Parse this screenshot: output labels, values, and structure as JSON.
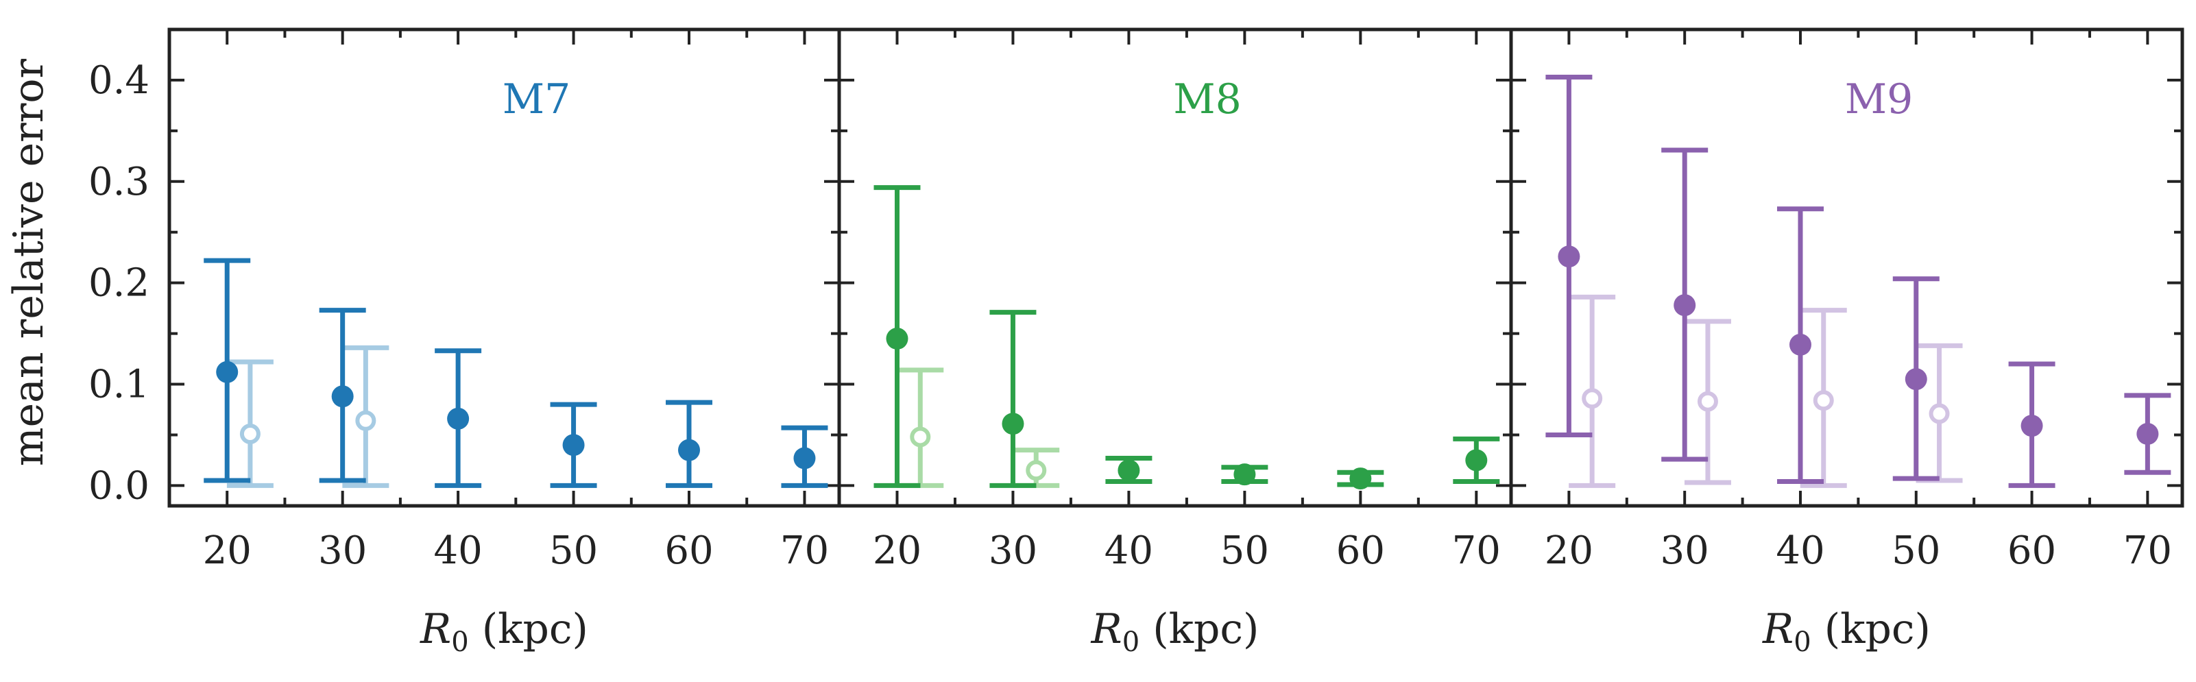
{
  "chart_data": {
    "type": "errorbar",
    "ylabel": "mean relative error",
    "ylim": [
      -0.02,
      0.45
    ],
    "yticks": [
      0.0,
      0.1,
      0.2,
      0.3,
      0.4
    ],
    "ytick_labels": [
      "0.0",
      "0.1",
      "0.2",
      "0.3",
      "0.4"
    ],
    "xlim": [
      15,
      73
    ],
    "xticks": [
      20,
      30,
      40,
      50,
      60,
      70
    ],
    "xtick_labels": [
      "20",
      "30",
      "40",
      "50",
      "60",
      "70"
    ],
    "xlabel_symbol": "R",
    "xlabel_subscript": "0",
    "xlabel_unit": " (kpc)",
    "panels": [
      {
        "label": "M7",
        "color": "#1f77b4",
        "light_color": "#a6cbe3",
        "series": [
          {
            "name": "filled",
            "x": [
              20,
              30,
              40,
              50,
              60,
              70
            ],
            "y": [
              0.112,
              0.088,
              0.066,
              0.04,
              0.035,
              0.027
            ],
            "lower": [
              0.005,
              0.005,
              0.0,
              0.0,
              0.0,
              0.0
            ],
            "upper": [
              0.222,
              0.173,
              0.133,
              0.08,
              0.082,
              0.057
            ]
          },
          {
            "name": "open",
            "x": [
              22,
              32
            ],
            "y": [
              0.051,
              0.064
            ],
            "lower": [
              0.0,
              0.0
            ],
            "upper": [
              0.122,
              0.136
            ]
          }
        ]
      },
      {
        "label": "M8",
        "color": "#2ca048",
        "light_color": "#a9dba6",
        "series": [
          {
            "name": "filled",
            "x": [
              20,
              30,
              40,
              50,
              60,
              70
            ],
            "y": [
              0.145,
              0.061,
              0.015,
              0.011,
              0.007,
              0.025
            ],
            "lower": [
              0.0,
              0.0,
              0.004,
              0.004,
              0.001,
              0.004
            ],
            "upper": [
              0.294,
              0.171,
              0.027,
              0.018,
              0.013,
              0.046
            ]
          },
          {
            "name": "open",
            "x": [
              22,
              32
            ],
            "y": [
              0.048,
              0.015
            ],
            "lower": [
              0.0,
              0.0
            ],
            "upper": [
              0.114,
              0.035
            ]
          }
        ]
      },
      {
        "label": "M9",
        "color": "#8b61ae",
        "light_color": "#d2c3e3",
        "series": [
          {
            "name": "filled",
            "x": [
              20,
              30,
              40,
              50,
              60,
              70
            ],
            "y": [
              0.226,
              0.178,
              0.139,
              0.105,
              0.059,
              0.051
            ],
            "lower": [
              0.05,
              0.026,
              0.004,
              0.007,
              0.0,
              0.013
            ],
            "upper": [
              0.403,
              0.331,
              0.273,
              0.204,
              0.12,
              0.089
            ]
          },
          {
            "name": "open",
            "x": [
              22,
              32,
              42,
              52
            ],
            "y": [
              0.086,
              0.083,
              0.084,
              0.071
            ],
            "lower": [
              0.0,
              0.003,
              0.0,
              0.005
            ],
            "upper": [
              0.186,
              0.162,
              0.173,
              0.138
            ]
          }
        ]
      }
    ]
  }
}
